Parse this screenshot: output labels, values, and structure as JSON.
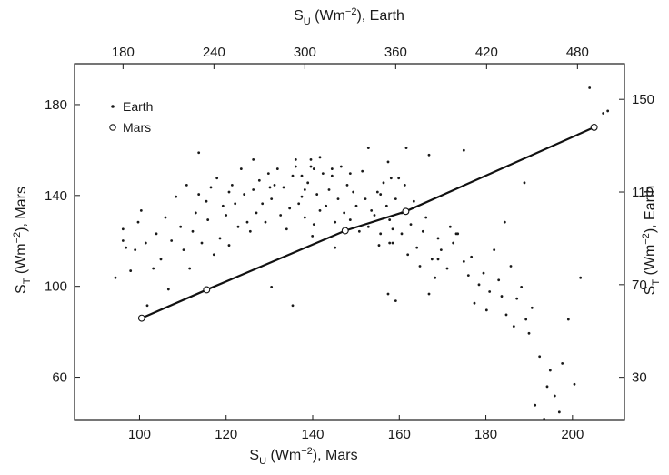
{
  "chart_data": {
    "type": "scatter",
    "axes": {
      "bottom": {
        "label": {
          "base": "S",
          "sub": "U",
          "mid": " (Wm",
          "sup": "−2",
          "tail": "), Mars"
        },
        "range": [
          85,
          212
        ],
        "ticks": [
          100,
          120,
          140,
          160,
          180,
          200
        ]
      },
      "top": {
        "label": {
          "base": "S",
          "sub": "U",
          "mid": " (Wm",
          "sup": "−2",
          "tail": "), Earth"
        },
        "range": [
          148,
          511
        ],
        "ticks": [
          180,
          240,
          300,
          360,
          420,
          480
        ]
      },
      "left": {
        "label": {
          "base": "S",
          "sub": "T",
          "mid": " (Wm",
          "sup": "−2",
          "tail": "), Mars"
        },
        "range": [
          41,
          198
        ],
        "ticks": [
          60,
          100,
          140,
          180
        ]
      },
      "right": {
        "label": {
          "base": "S",
          "sub": "T",
          "mid": " (Wm",
          "sup": "−2",
          "tail": "), Earth"
        },
        "range": [
          11.4,
          165.4
        ],
        "ticks": [
          30,
          70,
          110,
          150
        ]
      }
    },
    "legend": {
      "placement": "top-left",
      "entries": [
        {
          "label": "Earth",
          "marker": "dot"
        },
        {
          "label": "Mars",
          "marker": "open-circle"
        }
      ]
    },
    "grid": false,
    "series": [
      {
        "name": "Earth",
        "marker": "dot",
        "x_axis": "top",
        "y_axis": "right",
        "points": [
          [
            185,
            76
          ],
          [
            182,
            86
          ],
          [
            180,
            89
          ],
          [
            175,
            73
          ],
          [
            180,
            94
          ],
          [
            188,
            85
          ],
          [
            190,
            97
          ],
          [
            195,
            88
          ],
          [
            192,
            102
          ],
          [
            200,
            77
          ],
          [
            205,
            81
          ],
          [
            202,
            92
          ],
          [
            210,
            68
          ],
          [
            208,
            99
          ],
          [
            215,
            108
          ],
          [
            212,
            89
          ],
          [
            218,
            95
          ],
          [
            220,
            85
          ],
          [
            224,
            77
          ],
          [
            222,
            113
          ],
          [
            228,
            101
          ],
          [
            226,
            93
          ],
          [
            232,
            88
          ],
          [
            235,
            106
          ],
          [
            230,
            109
          ],
          [
            238,
            112
          ],
          [
            236,
            98
          ],
          [
            242,
            116
          ],
          [
            240,
            83
          ],
          [
            246,
            104
          ],
          [
            244,
            90
          ],
          [
            250,
            110
          ],
          [
            248,
            100
          ],
          [
            252,
            113
          ],
          [
            256,
            95
          ],
          [
            254,
            105
          ],
          [
            258,
            120
          ],
          [
            262,
            97
          ],
          [
            260,
            109
          ],
          [
            266,
            111
          ],
          [
            264,
            93
          ],
          [
            268,
            101
          ],
          [
            270,
            115
          ],
          [
            272,
            105
          ],
          [
            276,
            118
          ],
          [
            274,
            97
          ],
          [
            280,
            113
          ],
          [
            278,
            107
          ],
          [
            284,
            100
          ],
          [
            282,
            120
          ],
          [
            288,
            94
          ],
          [
            286,
            112
          ],
          [
            290,
            103
          ],
          [
            292,
            117
          ],
          [
            296,
            105
          ],
          [
            294,
            121
          ],
          [
            298,
            108
          ],
          [
            300,
            99
          ],
          [
            302,
            114
          ],
          [
            304,
            121
          ],
          [
            306,
            96
          ],
          [
            308,
            109
          ],
          [
            310,
            102
          ],
          [
            312,
            118
          ],
          [
            314,
            104
          ],
          [
            316,
            111
          ],
          [
            318,
            120
          ],
          [
            320,
            97
          ],
          [
            322,
            107
          ],
          [
            324,
            121
          ],
          [
            326,
            101
          ],
          [
            328,
            113
          ],
          [
            330,
            98
          ],
          [
            332,
            110
          ],
          [
            334,
            104
          ],
          [
            336,
            93
          ],
          [
            338,
            119
          ],
          [
            340,
            107
          ],
          [
            342,
            95
          ],
          [
            344,
            102
          ],
          [
            346,
            100
          ],
          [
            348,
            110
          ],
          [
            350,
            92
          ],
          [
            352,
            114
          ],
          [
            354,
            104
          ],
          [
            356,
            98
          ],
          [
            358,
            88
          ],
          [
            360,
            107
          ],
          [
            362,
            116
          ],
          [
            364,
            92
          ],
          [
            366,
            102
          ],
          [
            368,
            83
          ],
          [
            370,
            96
          ],
          [
            372,
            106
          ],
          [
            374,
            86
          ],
          [
            376,
            78
          ],
          [
            378,
            93
          ],
          [
            380,
            99
          ],
          [
            382,
            66
          ],
          [
            384,
            81
          ],
          [
            386,
            73
          ],
          [
            388,
            90
          ],
          [
            390,
            85
          ],
          [
            394,
            77
          ],
          [
            396,
            95
          ],
          [
            398,
            88
          ],
          [
            400,
            92
          ],
          [
            405,
            80
          ],
          [
            408,
            74
          ],
          [
            410,
            82
          ],
          [
            412,
            62
          ],
          [
            415,
            70
          ],
          [
            418,
            75
          ],
          [
            420,
            59
          ],
          [
            422,
            67
          ],
          [
            425,
            85
          ],
          [
            428,
            72
          ],
          [
            430,
            65
          ],
          [
            433,
            57
          ],
          [
            436,
            78
          ],
          [
            438,
            52
          ],
          [
            440,
            64
          ],
          [
            443,
            69
          ],
          [
            446,
            55
          ],
          [
            448,
            49
          ],
          [
            450,
            60
          ],
          [
            452,
            18
          ],
          [
            455,
            39
          ],
          [
            458,
            12
          ],
          [
            460,
            26
          ],
          [
            462,
            33
          ],
          [
            465,
            22
          ],
          [
            468,
            15
          ],
          [
            470,
            36
          ],
          [
            474,
            55
          ],
          [
            478,
            27
          ],
          [
            482,
            73
          ],
          [
            488,
            155
          ],
          [
            497,
            144
          ],
          [
            500,
            145
          ],
          [
            196,
            61
          ],
          [
            250,
            87
          ],
          [
            278,
            69
          ],
          [
            305,
            91
          ],
          [
            330,
            118
          ],
          [
            360,
            63
          ],
          [
            320,
            86
          ],
          [
            349,
            87
          ],
          [
            382,
            126
          ],
          [
            405,
            128
          ],
          [
            342,
            129
          ],
          [
            367,
            129
          ],
          [
            294,
            124
          ],
          [
            266,
            124
          ],
          [
            230,
            127
          ],
          [
            356,
            88
          ],
          [
            401,
            92
          ],
          [
            350,
            109
          ],
          [
            364,
            101
          ],
          [
            358,
            94
          ],
          [
            366,
            113
          ],
          [
            355,
            66
          ],
          [
            292,
            61
          ],
          [
            304,
            124
          ],
          [
            300,
            111
          ],
          [
            355,
            123
          ],
          [
            357,
            116
          ],
          [
            306,
            120
          ],
          [
            318,
            117
          ],
          [
            298,
            117
          ],
          [
            277,
            112
          ],
          [
            310,
            125
          ],
          [
            388,
            81
          ],
          [
            445,
            114
          ],
          [
            432,
            97
          ]
        ]
      },
      {
        "name": "Mars",
        "marker": "open-circle",
        "x_axis": "bottom",
        "y_axis": "left",
        "line": true,
        "points": [
          [
            100.5,
            86
          ],
          [
            115.5,
            98.5
          ],
          [
            147.5,
            124.5
          ],
          [
            161.5,
            133
          ],
          [
            205,
            170
          ]
        ]
      }
    ]
  }
}
